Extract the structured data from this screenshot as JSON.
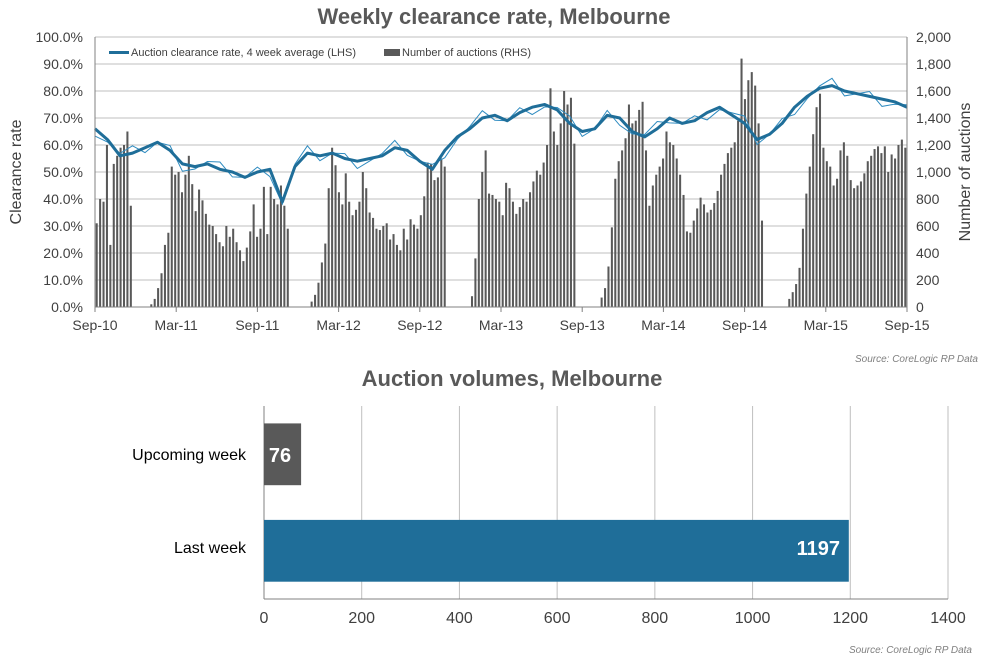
{
  "chart_data": [
    {
      "type": "line+bar",
      "title": "Weekly clearance rate, Melbourne",
      "ylabel_left": "Clearance rate",
      "ylabel_right": "Number of auctions",
      "ylim_left": [
        0,
        100
      ],
      "ylim_right": [
        0,
        2000
      ],
      "yticks_left": [
        "0.0%",
        "10.0%",
        "20.0%",
        "30.0%",
        "40.0%",
        "50.0%",
        "60.0%",
        "70.0%",
        "80.0%",
        "90.0%",
        "100.0%"
      ],
      "yticks_right": [
        "0",
        "200",
        "400",
        "600",
        "800",
        "1,000",
        "1,200",
        "1,400",
        "1,600",
        "1,800",
        "2,000"
      ],
      "xticks": [
        "Sep-10",
        "Mar-11",
        "Sep-11",
        "Mar-12",
        "Sep-12",
        "Mar-13",
        "Sep-13",
        "Mar-14",
        "Sep-14",
        "Mar-15",
        "Sep-15"
      ],
      "legend": [
        "Auction clearance rate, 4 week average (LHS)",
        "Number of auctions (RHS)"
      ],
      "legend_position": "top-left",
      "grid": true,
      "source": "Source: CoreLogic  RP Data",
      "colors": {
        "line": "#1f6e99",
        "weekly_line": "#2e8bc0",
        "bars": "#595959"
      },
      "series": [
        {
          "name": "Auction clearance rate, 4 week average (LHS)",
          "axis": "left",
          "type": "line",
          "x": [
            0,
            4,
            8,
            12,
            16,
            20,
            24,
            28,
            32,
            36,
            40,
            44,
            48,
            52,
            56,
            60,
            64,
            68,
            72,
            76,
            80,
            84,
            88,
            92,
            96,
            100,
            104,
            108,
            112,
            116,
            120,
            124,
            128,
            132,
            136,
            140,
            144,
            148,
            152,
            156,
            160,
            164,
            168,
            172,
            176,
            180,
            184,
            188,
            192,
            196,
            200,
            204,
            208,
            212,
            216,
            220,
            224,
            228,
            232,
            236,
            240,
            244,
            248,
            252,
            256,
            260
          ],
          "values": [
            66,
            62,
            56,
            57,
            59,
            61,
            58,
            53,
            52,
            53,
            51,
            50,
            48,
            50,
            51,
            39,
            52,
            57,
            56,
            57,
            55,
            54,
            55,
            56,
            59,
            58,
            54,
            51,
            58,
            63,
            66,
            70,
            71,
            69,
            72,
            74,
            75,
            73,
            68,
            65,
            66,
            71,
            70,
            65,
            63,
            66,
            70,
            68,
            69,
            72,
            74,
            71,
            68,
            62,
            64,
            68,
            74,
            78,
            81,
            82,
            80,
            79,
            78,
            77,
            76,
            74
          ]
        },
        {
          "name": "Number of auctions (RHS)",
          "axis": "right",
          "type": "bar",
          "values": [
            620,
            800,
            780,
            1200,
            460,
            1060,
            1120,
            1180,
            1200,
            1300,
            750,
            0,
            0,
            0,
            0,
            0,
            20,
            60,
            140,
            250,
            460,
            550,
            1040,
            980,
            1000,
            850,
            980,
            1120,
            910,
            710,
            870,
            790,
            690,
            610,
            600,
            540,
            480,
            450,
            600,
            520,
            580,
            480,
            420,
            340,
            440,
            560,
            760,
            520,
            580,
            890,
            540,
            890,
            800,
            760,
            900,
            750,
            580,
            0,
            0,
            0,
            0,
            0,
            0,
            40,
            90,
            180,
            330,
            470,
            880,
            1180,
            1050,
            850,
            760,
            990,
            780,
            680,
            720,
            780,
            1000,
            880,
            700,
            660,
            580,
            570,
            600,
            620,
            500,
            540,
            460,
            420,
            580,
            500,
            650,
            610,
            580,
            680,
            820,
            1070,
            1060,
            940,
            960,
            1100,
            1040,
            0,
            0,
            0,
            0,
            0,
            0,
            0,
            80,
            360,
            800,
            1000,
            1160,
            840,
            830,
            800,
            780,
            680,
            920,
            880,
            780,
            690,
            740,
            800,
            780,
            850,
            930,
            1010,
            980,
            1070,
            1200,
            1620,
            1300,
            1200,
            1360,
            1600,
            1500,
            1550,
            1210,
            0,
            0,
            0,
            0,
            0,
            0,
            0,
            70,
            140,
            300,
            590,
            950,
            1080,
            1160,
            1250,
            1500,
            1360,
            1380,
            1460,
            1520,
            1160,
            750,
            900,
            980,
            1040,
            1100,
            1300,
            1220,
            1200,
            1100,
            980,
            830,
            560,
            550,
            640,
            730,
            810,
            760,
            700,
            720,
            770,
            860,
            980,
            1060,
            1140,
            1180,
            1220,
            1380,
            1840,
            1540,
            1680,
            1740,
            1640,
            1360,
            640,
            0,
            0,
            0,
            0,
            0,
            0,
            0,
            60,
            110,
            170,
            290,
            580,
            840,
            1040,
            1280,
            1480,
            1580,
            1180,
            1080,
            1040,
            900,
            950,
            1160,
            1220,
            1120,
            940,
            880,
            900,
            930,
            990,
            1080,
            1120,
            1170,
            1190,
            1140,
            1190,
            1000,
            1130,
            1100,
            1200,
            1240,
            1180
          ]
        }
      ]
    },
    {
      "type": "bar",
      "orientation": "horizontal",
      "title": "Auction volumes, Melbourne",
      "categories": [
        "Upcoming week",
        "Last week"
      ],
      "values": [
        76,
        1197
      ],
      "data_labels": [
        "76",
        "1197"
      ],
      "bar_colors": [
        "#595959",
        "#1f6e99"
      ],
      "xlim": [
        0,
        1400
      ],
      "xticks": [
        "0",
        "200",
        "400",
        "600",
        "800",
        "1000",
        "1200",
        "1400"
      ],
      "grid": true,
      "source": "Source: CoreLogic  RP Data"
    }
  ]
}
